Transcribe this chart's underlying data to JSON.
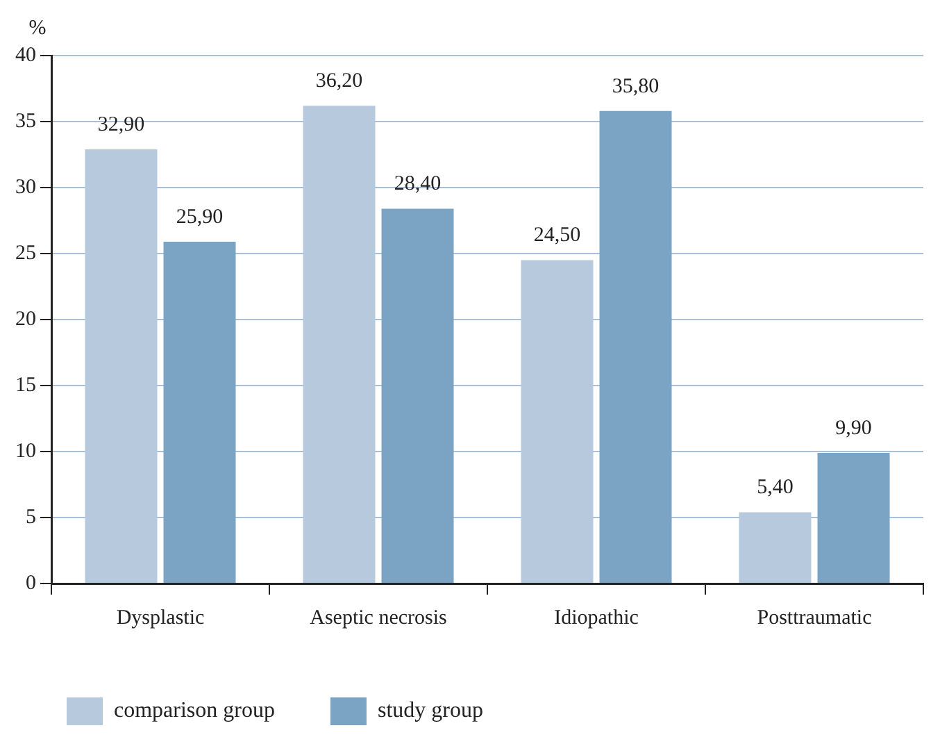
{
  "chart_data": {
    "type": "bar",
    "ylabel": "%",
    "categories": [
      "Dysplastic",
      "Aseptic necrosis",
      "Idiopathic",
      "Posttraumatic"
    ],
    "series": [
      {
        "name": "comparison group",
        "color": "#b7c9dd",
        "values": [
          32.9,
          36.2,
          24.5,
          5.4
        ],
        "value_labels": [
          "32,90",
          "36,20",
          "24,50",
          "5,40"
        ]
      },
      {
        "name": "study group",
        "color": "#7ba3c3",
        "values": [
          25.9,
          28.4,
          35.8,
          9.9
        ],
        "value_labels": [
          "25,90",
          "28,40",
          "35,80",
          "9,90"
        ]
      }
    ],
    "ylim": [
      0,
      40
    ],
    "yticks": [
      0,
      5,
      10,
      15,
      20,
      25,
      30,
      35,
      40
    ],
    "grid": "y",
    "legend": "bottom left"
  }
}
